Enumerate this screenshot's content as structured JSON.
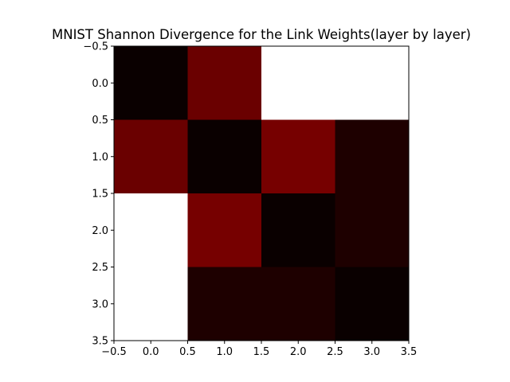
{
  "chart_data": {
    "type": "heatmap",
    "title": "MNIST Shannon Divergence for the Link Weights(layer by layer)",
    "xlabel": "",
    "ylabel": "",
    "xlim": [
      -0.5,
      3.5
    ],
    "ylim": [
      3.5,
      -0.5
    ],
    "y_inverted": true,
    "grid": false,
    "colormap": "hot",
    "xticks": [
      -0.5,
      0.0,
      0.5,
      1.0,
      1.5,
      2.0,
      2.5,
      3.0,
      3.5
    ],
    "yticks": [
      -0.5,
      0.0,
      0.5,
      1.0,
      1.5,
      2.0,
      2.5,
      3.0,
      3.5
    ],
    "xtick_labels": [
      "−0.5",
      "0.0",
      "0.5",
      "1.0",
      "1.5",
      "2.0",
      "2.5",
      "3.0",
      "3.5"
    ],
    "ytick_labels": [
      "−0.5",
      "0.0",
      "0.5",
      "1.0",
      "1.5",
      "2.0",
      "2.5",
      "3.0",
      "3.5"
    ],
    "cells": [
      {
        "row": 0,
        "col": 0,
        "color": "#0a0000"
      },
      {
        "row": 0,
        "col": 1,
        "color": "#6a0000"
      },
      {
        "row": 0,
        "col": 2,
        "color": "#ffffff"
      },
      {
        "row": 0,
        "col": 3,
        "color": "#ffffff"
      },
      {
        "row": 1,
        "col": 0,
        "color": "#6a0000"
      },
      {
        "row": 1,
        "col": 1,
        "color": "#0a0000"
      },
      {
        "row": 1,
        "col": 2,
        "color": "#760000"
      },
      {
        "row": 1,
        "col": 3,
        "color": "#1e0000"
      },
      {
        "row": 2,
        "col": 0,
        "color": "#ffffff"
      },
      {
        "row": 2,
        "col": 1,
        "color": "#760000"
      },
      {
        "row": 2,
        "col": 2,
        "color": "#0a0000"
      },
      {
        "row": 2,
        "col": 3,
        "color": "#1e0000"
      },
      {
        "row": 3,
        "col": 0,
        "color": "#ffffff"
      },
      {
        "row": 3,
        "col": 1,
        "color": "#1e0000"
      },
      {
        "row": 3,
        "col": 2,
        "color": "#1e0000"
      },
      {
        "row": 3,
        "col": 3,
        "color": "#0a0000"
      }
    ]
  }
}
